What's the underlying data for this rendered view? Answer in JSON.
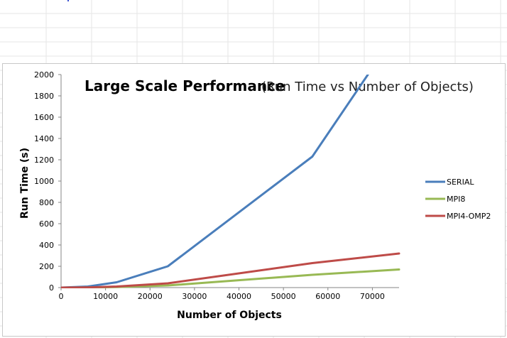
{
  "chart_data": {
    "type": "line",
    "title": "Large Scale Performance",
    "subtitle": "(Run Time vs Number of Objects)",
    "xlabel": "Number of Objects",
    "ylabel": "Run Time (s)",
    "xlim": [
      0,
      76000
    ],
    "ylim": [
      0,
      2000
    ],
    "xticks": [
      0,
      10000,
      20000,
      30000,
      40000,
      50000,
      60000,
      70000
    ],
    "yticks": [
      0,
      200,
      400,
      600,
      800,
      1000,
      1200,
      1400,
      1600,
      1800,
      2000
    ],
    "grid": false,
    "legend_position": "right",
    "series": [
      {
        "name": "SERIAL",
        "color": "#4a7ebb",
        "x": [
          0,
          6000,
          12500,
          24000,
          56500,
          69000
        ],
        "y": [
          0,
          10,
          50,
          200,
          1230,
          2000
        ]
      },
      {
        "name": "MPI8",
        "color": "#98b954",
        "x": [
          0,
          6000,
          12500,
          24000,
          56500,
          76000
        ],
        "y": [
          0,
          1,
          5,
          20,
          120,
          170
        ]
      },
      {
        "name": "MPI4-OMP2",
        "color": "#be4b48",
        "x": [
          0,
          6000,
          12500,
          24000,
          56500,
          76000
        ],
        "y": [
          0,
          2,
          10,
          40,
          230,
          320
        ]
      }
    ]
  }
}
